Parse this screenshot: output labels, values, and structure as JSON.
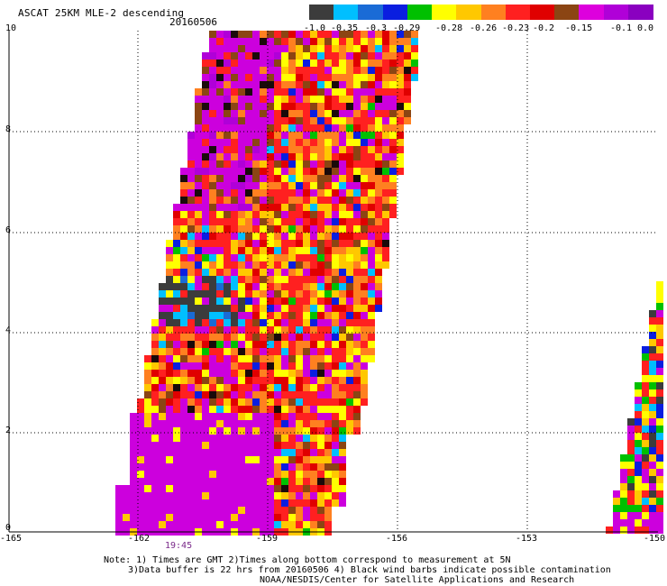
{
  "header": {
    "title": "ASCAT 25KM MLE-2 descending",
    "date": "20160506"
  },
  "colorbar": {
    "colors": [
      "#3c3c3c",
      "#00bfff",
      "#1a6bd6",
      "#0a1ee0",
      "#00c000",
      "#ffff00",
      "#ffc800",
      "#ff8020",
      "#ff2020",
      "#e00000",
      "#8b4513",
      "#dd00dd",
      "#b000d8",
      "#8a00c0"
    ],
    "labels": [
      "-1.0",
      "-0.35",
      "-0.3",
      "-0.29",
      "-0.28",
      "-0.26",
      "-0.23",
      "-0.2",
      "-0.15",
      "-0.1",
      "0.0"
    ]
  },
  "axes": {
    "y_ticks": [
      "10",
      "8",
      "6",
      "4",
      "2",
      "0"
    ],
    "x_ticks": [
      "-165",
      "-162",
      "-159",
      "-156",
      "-153",
      "-150"
    ]
  },
  "time_label": "19:45",
  "notes": [
    "Note: 1) Times are GMT 2)Times along bottom correspond to measurement at 5N",
    "3)Data buffer is 22 hrs from 20160506 4) Black wind barbs indicate possible contamination",
    "NOAA/NESDIS/Center for Satellite Applications and Research"
  ]
}
